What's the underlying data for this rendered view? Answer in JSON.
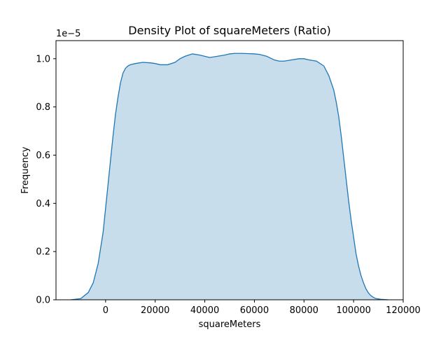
{
  "chart_data": {
    "type": "area",
    "title": "Density Plot of squareMeters (Ratio)",
    "xlabel": "squareMeters",
    "ylabel": "Frequency",
    "y_offset_label": "1e−5",
    "xlim": [
      -20000,
      120000
    ],
    "ylim": [
      0.0,
      1.075
    ],
    "y_scale_factor": 1e-05,
    "x_ticks": [
      0,
      20000,
      40000,
      60000,
      80000,
      100000,
      120000
    ],
    "x_tick_labels": [
      "0",
      "20000",
      "40000",
      "60000",
      "80000",
      "100000",
      "120000"
    ],
    "y_ticks": [
      0.0,
      0.2,
      0.4,
      0.6,
      0.8,
      1.0
    ],
    "y_tick_labels": [
      "0.0",
      "0.2",
      "0.4",
      "0.6",
      "0.8",
      "1.0"
    ],
    "grid": false,
    "series": [
      {
        "x": [
          -14000,
          -10000,
          -7000,
          -5000,
          -3000,
          -1000,
          0,
          1000,
          2000,
          3000,
          4000,
          5000,
          6000,
          7000,
          8000,
          9000,
          10000,
          12000,
          15000,
          18000,
          20000,
          22000,
          25000,
          28000,
          30000,
          32000,
          35000,
          38000,
          40000,
          42000,
          45000,
          48000,
          50000,
          52000,
          55000,
          58000,
          60000,
          62000,
          65000,
          68000,
          70000,
          72000,
          75000,
          78000,
          80000,
          82000,
          85000,
          88000,
          90000,
          92000,
          93000,
          94000,
          95000,
          96000,
          97000,
          98000,
          99000,
          100000,
          101000,
          102000,
          103000,
          104000,
          105000,
          106000,
          107000,
          108000,
          109000,
          111000,
          114000
        ],
        "values": [
          0.0,
          0.005,
          0.03,
          0.07,
          0.15,
          0.28,
          0.38,
          0.48,
          0.58,
          0.68,
          0.77,
          0.84,
          0.9,
          0.94,
          0.96,
          0.97,
          0.975,
          0.98,
          0.985,
          0.983,
          0.98,
          0.975,
          0.975,
          0.985,
          1.0,
          1.01,
          1.02,
          1.015,
          1.01,
          1.005,
          1.01,
          1.015,
          1.02,
          1.022,
          1.022,
          1.021,
          1.02,
          1.018,
          1.01,
          0.995,
          0.99,
          0.99,
          0.995,
          1.0,
          1.0,
          0.995,
          0.99,
          0.97,
          0.93,
          0.87,
          0.82,
          0.76,
          0.68,
          0.59,
          0.5,
          0.41,
          0.33,
          0.26,
          0.19,
          0.14,
          0.1,
          0.07,
          0.045,
          0.028,
          0.017,
          0.01,
          0.005,
          0.002,
          0.0
        ]
      }
    ]
  },
  "style": {
    "line_color": "#1f77b4",
    "fill_color": "#1f77b4",
    "fill_opacity": 0.25
  }
}
